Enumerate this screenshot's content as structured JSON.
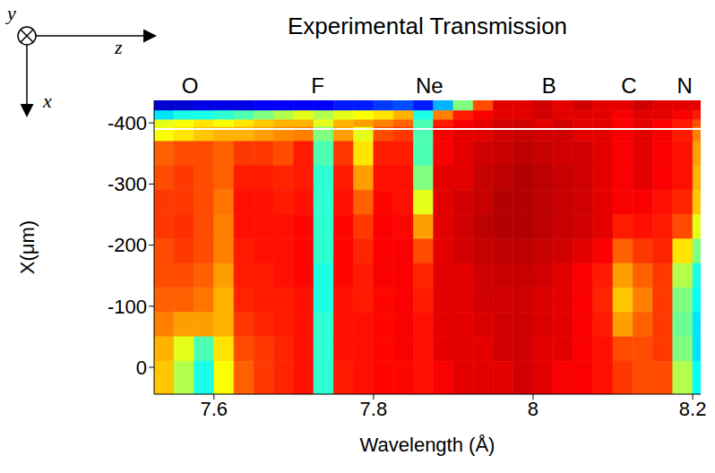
{
  "chart_data": {
    "type": "heatmap",
    "title": "Experimental Transmission",
    "x_label": "Wavelength (Å)",
    "y_label": "X(μm)",
    "xlim": [
      7.525,
      8.21
    ],
    "ylim": [
      -437,
      44
    ],
    "xticks": [
      7.6,
      7.8,
      8,
      8.2
    ],
    "yticks": [
      -400,
      -300,
      -200,
      -100,
      0
    ],
    "zlim": [
      0,
      1
    ],
    "annotations": [
      {
        "text": "O",
        "x": 7.57
      },
      {
        "text": "F",
        "x": 7.73
      },
      {
        "text": "Ne",
        "x": 7.87
      },
      {
        "text": "B",
        "x": 8.02
      },
      {
        "text": "C",
        "x": 8.12
      },
      {
        "text": "N",
        "x": 8.19
      }
    ],
    "reference_line": -390,
    "axis_icon": [
      "y",
      "z",
      "x"
    ],
    "x_edges": [
      7.525,
      7.55,
      7.575,
      7.6,
      7.625,
      7.65,
      7.675,
      7.7,
      7.725,
      7.75,
      7.775,
      7.8,
      7.825,
      7.85,
      7.875,
      7.9,
      7.925,
      7.95,
      7.975,
      8.0,
      8.025,
      8.05,
      8.075,
      8.1,
      8.125,
      8.15,
      8.175,
      8.2,
      8.21
    ],
    "y_edges": [
      -437,
      -420,
      -405,
      -393,
      -370,
      -330,
      -290,
      -250,
      -210,
      -170,
      -130,
      -90,
      -50,
      -10,
      44
    ],
    "cells": [
      [
        0.08,
        0.08,
        0.1,
        0.1,
        0.1,
        0.12,
        0.12,
        0.12,
        0.12,
        0.15,
        0.15,
        0.18,
        0.2,
        0.15,
        0.3,
        0.5,
        0.8,
        0.9,
        0.9,
        0.92,
        0.9,
        0.92,
        0.9,
        0.9,
        0.92,
        0.9,
        0.9,
        0.9
      ],
      [
        0.35,
        0.4,
        0.4,
        0.42,
        0.45,
        0.5,
        0.55,
        0.6,
        0.55,
        0.6,
        0.62,
        0.65,
        0.7,
        0.4,
        0.75,
        0.85,
        0.88,
        0.9,
        0.9,
        0.92,
        0.9,
        0.9,
        0.9,
        0.88,
        0.9,
        0.9,
        0.88,
        0.85
      ],
      [
        0.6,
        0.62,
        0.65,
        0.62,
        0.65,
        0.68,
        0.7,
        0.7,
        0.6,
        0.7,
        0.72,
        0.75,
        0.78,
        0.45,
        0.85,
        0.88,
        0.9,
        0.92,
        0.92,
        0.9,
        0.92,
        0.9,
        0.9,
        0.88,
        0.9,
        0.88,
        0.85,
        0.8
      ],
      [
        0.62,
        0.65,
        0.68,
        0.7,
        0.7,
        0.72,
        0.74,
        0.75,
        0.5,
        0.72,
        0.6,
        0.8,
        0.82,
        0.45,
        0.88,
        0.9,
        0.9,
        0.92,
        0.93,
        0.92,
        0.92,
        0.9,
        0.9,
        0.88,
        0.9,
        0.88,
        0.85,
        0.75
      ],
      [
        0.78,
        0.8,
        0.8,
        0.78,
        0.82,
        0.82,
        0.8,
        0.85,
        0.45,
        0.82,
        0.65,
        0.85,
        0.85,
        0.45,
        0.88,
        0.9,
        0.92,
        0.93,
        0.94,
        0.93,
        0.92,
        0.92,
        0.9,
        0.88,
        0.9,
        0.88,
        0.86,
        0.72
      ],
      [
        0.8,
        0.82,
        0.8,
        0.78,
        0.85,
        0.85,
        0.84,
        0.85,
        0.42,
        0.85,
        0.72,
        0.86,
        0.86,
        0.5,
        0.9,
        0.9,
        0.93,
        0.94,
        0.95,
        0.94,
        0.93,
        0.92,
        0.9,
        0.88,
        0.9,
        0.88,
        0.86,
        0.7
      ],
      [
        0.82,
        0.82,
        0.8,
        0.76,
        0.86,
        0.86,
        0.85,
        0.86,
        0.42,
        0.86,
        0.78,
        0.87,
        0.86,
        0.6,
        0.9,
        0.92,
        0.93,
        0.95,
        0.95,
        0.94,
        0.93,
        0.92,
        0.9,
        0.88,
        0.88,
        0.86,
        0.84,
        0.68
      ],
      [
        0.82,
        0.83,
        0.8,
        0.75,
        0.86,
        0.86,
        0.86,
        0.87,
        0.42,
        0.87,
        0.82,
        0.88,
        0.87,
        0.72,
        0.9,
        0.92,
        0.94,
        0.95,
        0.95,
        0.94,
        0.93,
        0.92,
        0.9,
        0.85,
        0.86,
        0.85,
        0.8,
        0.6
      ],
      [
        0.8,
        0.82,
        0.8,
        0.75,
        0.85,
        0.86,
        0.86,
        0.87,
        0.42,
        0.87,
        0.84,
        0.88,
        0.88,
        0.8,
        0.9,
        0.92,
        0.93,
        0.94,
        0.94,
        0.93,
        0.92,
        0.9,
        0.88,
        0.78,
        0.82,
        0.84,
        0.65,
        0.5
      ],
      [
        0.8,
        0.8,
        0.78,
        0.72,
        0.85,
        0.85,
        0.86,
        0.87,
        0.4,
        0.87,
        0.85,
        0.88,
        0.88,
        0.84,
        0.9,
        0.9,
        0.92,
        0.93,
        0.93,
        0.92,
        0.9,
        0.88,
        0.85,
        0.72,
        0.78,
        0.82,
        0.55,
        0.4
      ],
      [
        0.78,
        0.78,
        0.76,
        0.7,
        0.84,
        0.85,
        0.85,
        0.86,
        0.4,
        0.86,
        0.85,
        0.87,
        0.88,
        0.85,
        0.9,
        0.9,
        0.92,
        0.92,
        0.92,
        0.91,
        0.9,
        0.88,
        0.84,
        0.68,
        0.75,
        0.82,
        0.5,
        0.38
      ],
      [
        0.75,
        0.72,
        0.72,
        0.7,
        0.82,
        0.84,
        0.85,
        0.86,
        0.42,
        0.86,
        0.86,
        0.87,
        0.88,
        0.86,
        0.9,
        0.9,
        0.91,
        0.92,
        0.92,
        0.91,
        0.9,
        0.88,
        0.85,
        0.72,
        0.78,
        0.82,
        0.48,
        0.35
      ],
      [
        0.7,
        0.6,
        0.45,
        0.65,
        0.8,
        0.82,
        0.84,
        0.86,
        0.42,
        0.86,
        0.86,
        0.87,
        0.88,
        0.86,
        0.9,
        0.9,
        0.9,
        0.92,
        0.92,
        0.9,
        0.9,
        0.88,
        0.86,
        0.8,
        0.8,
        0.82,
        0.5,
        0.35
      ],
      [
        0.68,
        0.55,
        0.4,
        0.62,
        0.78,
        0.82,
        0.84,
        0.86,
        0.42,
        0.85,
        0.86,
        0.87,
        0.87,
        0.86,
        0.88,
        0.9,
        0.9,
        0.9,
        0.92,
        0.9,
        0.88,
        0.88,
        0.86,
        0.82,
        0.8,
        0.8,
        0.55,
        0.38
      ]
    ]
  }
}
